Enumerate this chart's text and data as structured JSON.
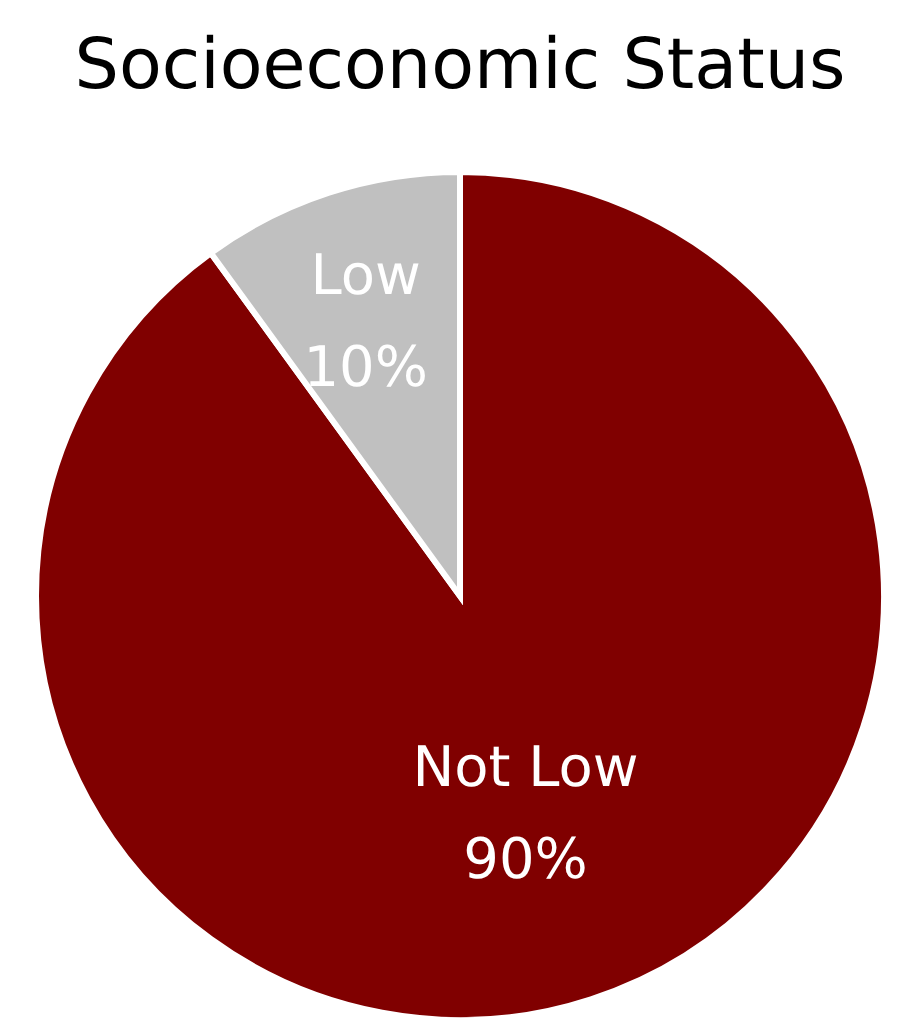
{
  "chart_data": {
    "type": "pie",
    "title": "Socioeconomic Status",
    "categories": [
      "Not Low",
      "Low"
    ],
    "values": [
      90,
      10
    ],
    "colors": [
      "#800000",
      "#c0c0c0"
    ],
    "value_labels": [
      "90%",
      "10%"
    ]
  }
}
